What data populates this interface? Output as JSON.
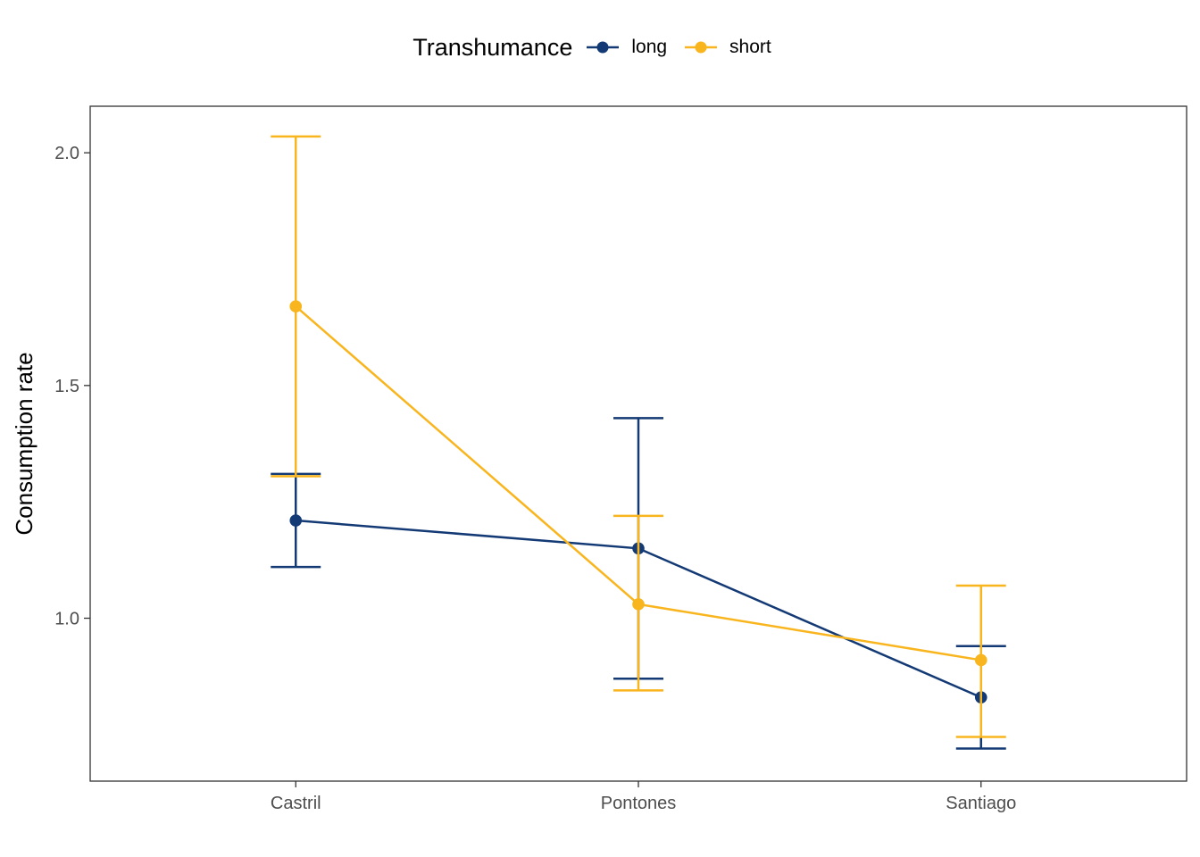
{
  "chart_data": {
    "type": "line",
    "title": "",
    "xlabel": "",
    "ylabel": "Consumption rate",
    "categories": [
      "Castril",
      "Pontones",
      "Santiago"
    ],
    "ylim": [
      0.65,
      2.1
    ],
    "y_ticks": [
      1.0,
      1.5,
      2.0
    ],
    "y_tick_labels": [
      "1.0",
      "1.5",
      "2.0"
    ],
    "grid": false,
    "legend": {
      "title": "Transhumance",
      "position": "top"
    },
    "series": [
      {
        "name": "long",
        "color": "#143a75",
        "values": [
          1.21,
          1.15,
          0.83
        ],
        "lower": [
          1.11,
          0.87,
          0.72
        ],
        "upper": [
          1.31,
          1.43,
          0.94
        ]
      },
      {
        "name": "short",
        "color": "#f9b51e",
        "values": [
          1.67,
          1.03,
          0.91
        ],
        "lower": [
          1.305,
          0.845,
          0.745
        ],
        "upper": [
          2.035,
          1.22,
          1.07
        ]
      }
    ]
  }
}
